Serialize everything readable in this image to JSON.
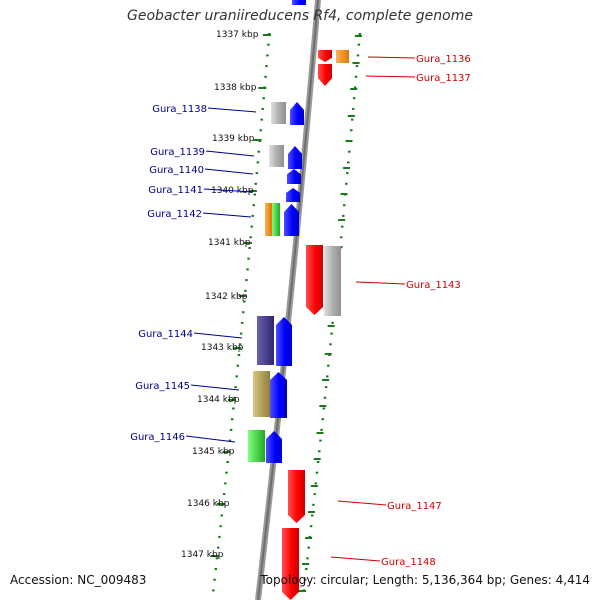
{
  "title": "Geobacter uraniireducens Rf4, complete genome",
  "footer": {
    "accession": "Accession: NC_009483",
    "topology": "Topology: circular; Length: 5,136,364 bp; Genes: 4,414"
  },
  "scale_labels": [
    "1337 kbp",
    "1338 kbp",
    "1339 kbp",
    "1340 kbp",
    "1341 kbp",
    "1342 kbp",
    "1343 kbp",
    "1344 kbp",
    "1345 kbp",
    "1346 kbp",
    "1347 kbp"
  ],
  "genes_left": [
    "Gura_1138",
    "Gura_1139",
    "Gura_1140",
    "Gura_1141",
    "Gura_1142",
    "Gura_1144",
    "Gura_1145",
    "Gura_1146"
  ],
  "genes_right": [
    "Gura_1136",
    "Gura_1137",
    "Gura_1143",
    "Gura_1147",
    "Gura_1148"
  ],
  "colors": {
    "left_label": "#00008b",
    "right_label": "#cc0000",
    "backbone": "#888888",
    "tick": "#1a7a1a",
    "forward": "#0000ff",
    "reverse": "#ff0000",
    "gray": "#aaaaaa",
    "orange": "#ff8c00",
    "green": "#33cc33",
    "purple": "#4b3f8c",
    "khaki": "#b5a35a"
  }
}
